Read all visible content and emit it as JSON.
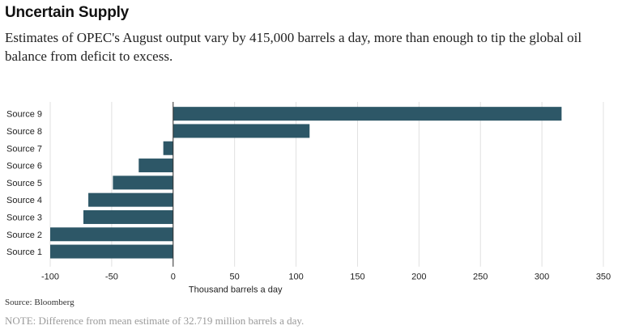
{
  "header": {
    "title": "Uncertain Supply",
    "subtitle": "Estimates of OPEC's August output vary by 415,000 barrels a day, more than enough to tip the global oil balance from deficit to excess."
  },
  "footer": {
    "source": "Source: Bloomberg",
    "note": "NOTE: Difference from mean estimate of 32.719 million barrels a day."
  },
  "colors": {
    "bar": "#2d5767",
    "grid": "#e0e0e0",
    "axis": "#333333"
  },
  "chart_data": {
    "type": "bar",
    "orientation": "horizontal",
    "categories": [
      "Source 9",
      "Source 8",
      "Source 7",
      "Source 6",
      "Source 5",
      "Source 4",
      "Source 3",
      "Source 2",
      "Source 1"
    ],
    "values": [
      316,
      111,
      -8,
      -28,
      -49,
      -69,
      -73,
      -100,
      -100
    ],
    "title": "",
    "xlabel": "Thousand barrels a day",
    "ylabel": "",
    "xlim": [
      -100,
      350
    ],
    "xticks": [
      -100,
      -50,
      0,
      50,
      100,
      150,
      200,
      250,
      300,
      350
    ],
    "xtick_labels": [
      "-100",
      "-50",
      "0",
      "50",
      "100",
      "150",
      "200",
      "250",
      "300",
      "350"
    ],
    "grid": true
  }
}
